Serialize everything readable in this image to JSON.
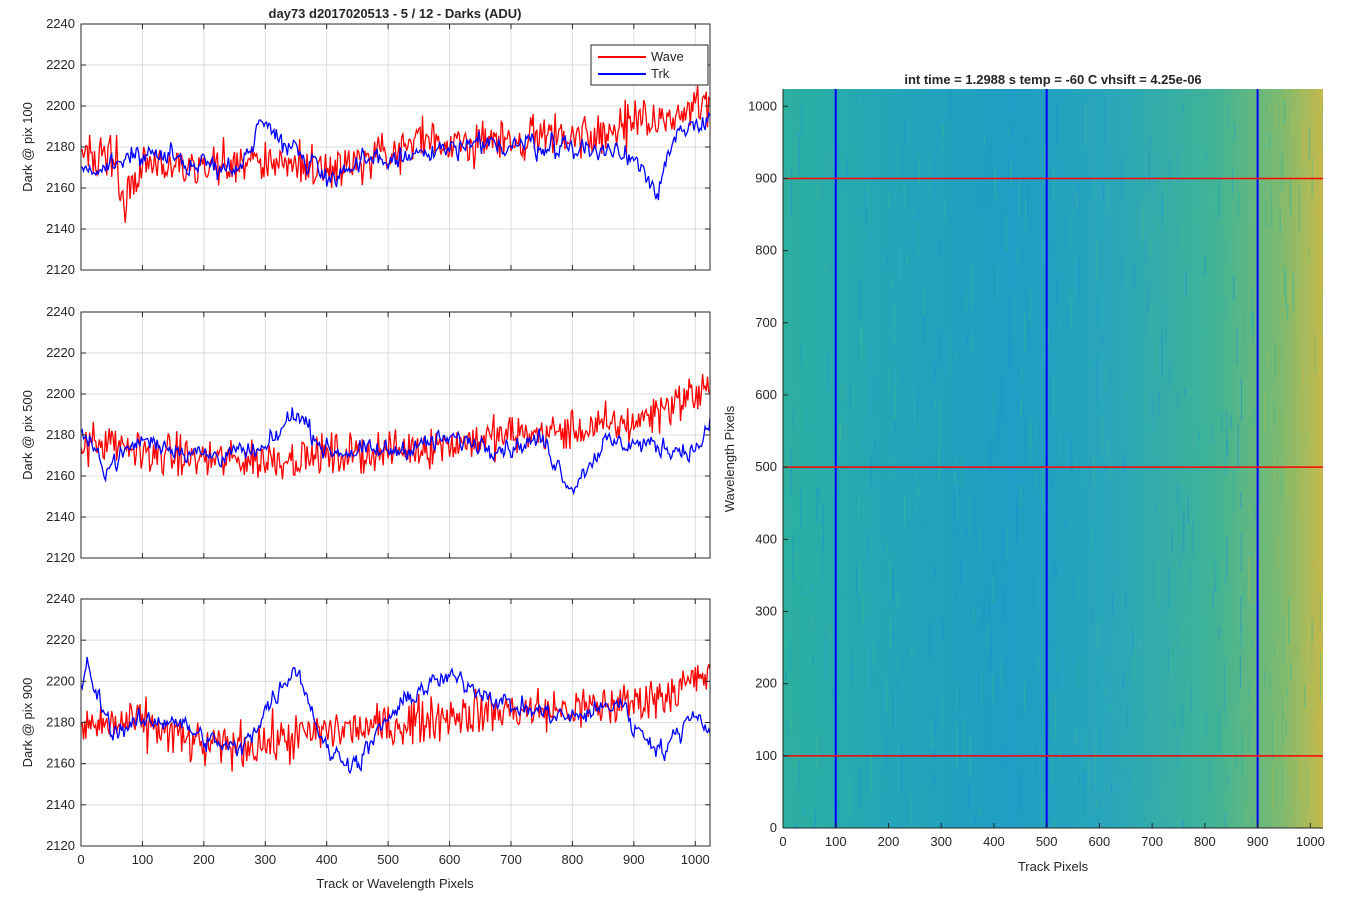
{
  "figure": {
    "title": "day73 d2017020513 - 5 / 12 - Darks (ADU)",
    "heatmap_title": "int time = 1.2988 s    temp = -60 C    vhsift = 4.25e-06",
    "shared_xlabel": "Track or Wavelength Pixels"
  },
  "colors": {
    "wave": "#ff0000",
    "trk": "#0000ff",
    "grid": "#dcdcdc",
    "axis": "#262626",
    "heatmap_low": "#1d9fc8",
    "heatmap_mid": "#2cb1a3",
    "heatmap_high": "#c7b84a"
  },
  "chart_data": [
    {
      "type": "line",
      "panel": "top-left",
      "ylabel": "Dark @ pix 100",
      "xlabel": "",
      "xlim": [
        0,
        1024
      ],
      "ylim": [
        2120,
        2240
      ],
      "xticks": [
        0,
        100,
        200,
        300,
        400,
        500,
        600,
        700,
        800,
        900,
        1000
      ],
      "yticks": [
        2120,
        2140,
        2160,
        2180,
        2200,
        2220,
        2240
      ],
      "grid": true,
      "legend": "top-right",
      "series": [
        {
          "name": "Wave",
          "color": "#ff0000",
          "noise": 11,
          "x": [
            0,
            60,
            62,
            100,
            200,
            300,
            400,
            500,
            550,
            600,
            700,
            800,
            900,
            950,
            1000,
            1024
          ],
          "y": [
            2178,
            2174,
            2148,
            2172,
            2170,
            2174,
            2170,
            2175,
            2184,
            2180,
            2184,
            2186,
            2190,
            2192,
            2200,
            2198
          ]
        },
        {
          "name": "Trk",
          "color": "#0000ff",
          "noise": 6,
          "x": [
            0,
            100,
            200,
            250,
            300,
            330,
            400,
            500,
            600,
            700,
            800,
            900,
            940,
            960,
            1000,
            1024
          ],
          "y": [
            2170,
            2176,
            2172,
            2168,
            2194,
            2184,
            2166,
            2174,
            2178,
            2182,
            2180,
            2176,
            2160,
            2180,
            2190,
            2196
          ]
        }
      ]
    },
    {
      "type": "line",
      "panel": "middle-left",
      "ylabel": "Dark @ pix 500",
      "xlabel": "",
      "xlim": [
        0,
        1024
      ],
      "ylim": [
        2120,
        2240
      ],
      "xticks": [
        0,
        100,
        200,
        300,
        400,
        500,
        600,
        700,
        800,
        900,
        1000
      ],
      "yticks": [
        2120,
        2140,
        2160,
        2180,
        2200,
        2220,
        2240
      ],
      "grid": true,
      "series": [
        {
          "name": "Wave",
          "color": "#ff0000",
          "noise": 10,
          "x": [
            0,
            100,
            200,
            300,
            400,
            500,
            600,
            700,
            800,
            900,
            950,
            1000,
            1024
          ],
          "y": [
            2176,
            2172,
            2168,
            2168,
            2170,
            2172,
            2176,
            2180,
            2182,
            2186,
            2194,
            2200,
            2204
          ]
        },
        {
          "name": "Trk",
          "color": "#0000ff",
          "noise": 5,
          "x": [
            0,
            20,
            40,
            100,
            200,
            300,
            350,
            400,
            500,
            600,
            700,
            750,
            800,
            850,
            900,
            1000,
            1024
          ],
          "y": [
            2182,
            2172,
            2164,
            2178,
            2170,
            2172,
            2192,
            2172,
            2172,
            2178,
            2174,
            2178,
            2154,
            2176,
            2176,
            2172,
            2184
          ]
        }
      ]
    },
    {
      "type": "line",
      "panel": "bottom-left",
      "ylabel": "Dark @ pix 900",
      "xlabel": "Track or Wavelength Pixels",
      "xlim": [
        0,
        1024
      ],
      "ylim": [
        2120,
        2240
      ],
      "xticks": [
        0,
        100,
        200,
        300,
        400,
        500,
        600,
        700,
        800,
        900,
        1000
      ],
      "yticks": [
        2120,
        2140,
        2160,
        2180,
        2200,
        2220,
        2240
      ],
      "grid": true,
      "series": [
        {
          "name": "Wave",
          "color": "#ff0000",
          "noise": 11,
          "x": [
            0,
            100,
            200,
            300,
            400,
            500,
            600,
            700,
            800,
            900,
            950,
            1000,
            1024
          ],
          "y": [
            2178,
            2180,
            2168,
            2170,
            2176,
            2178,
            2184,
            2186,
            2186,
            2190,
            2194,
            2200,
            2204
          ]
        },
        {
          "name": "Trk",
          "color": "#0000ff",
          "noise": 5,
          "x": [
            0,
            10,
            50,
            100,
            150,
            200,
            260,
            300,
            350,
            400,
            450,
            500,
            550,
            600,
            650,
            700,
            800,
            880,
            900,
            950,
            1000,
            1024
          ],
          "y": [
            2198,
            2206,
            2176,
            2180,
            2182,
            2172,
            2166,
            2186,
            2208,
            2166,
            2160,
            2182,
            2196,
            2202,
            2196,
            2188,
            2182,
            2190,
            2178,
            2166,
            2186,
            2176
          ]
        }
      ]
    },
    {
      "type": "heatmap",
      "panel": "right",
      "title": "int time = 1.2988 s    temp = -60 C    vhsift = 4.25e-06",
      "xlabel": "Track Pixels",
      "ylabel": "Wavelength Pixels",
      "xlim": [
        0,
        1024
      ],
      "ylim": [
        0,
        1024
      ],
      "xticks": [
        0,
        100,
        200,
        300,
        400,
        500,
        600,
        700,
        800,
        900,
        1000
      ],
      "yticks": [
        0,
        100,
        200,
        300,
        400,
        500,
        600,
        700,
        800,
        900,
        1000
      ],
      "colormap": "parula",
      "vertical_markers": [
        100,
        500,
        900
      ],
      "vertical_marker_color": "#0000ff",
      "horizontal_markers": [
        100,
        500,
        900
      ],
      "horizontal_marker_color": "#ff0000"
    }
  ]
}
